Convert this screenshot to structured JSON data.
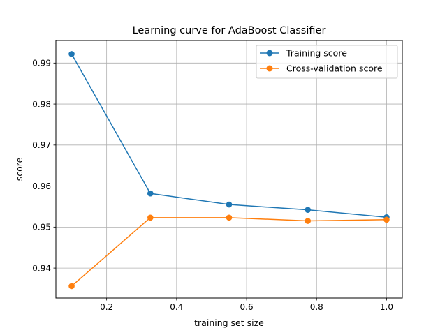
{
  "chart_data": {
    "type": "line",
    "title": "Learning curve for AdaBoost Classifier",
    "xlabel": "training set size",
    "ylabel": "score",
    "xlim": [
      0.055,
      1.045
    ],
    "ylim": [
      0.9327,
      0.9955
    ],
    "xticks": [
      0.2,
      0.4,
      0.6,
      0.8,
      1.0
    ],
    "xtick_labels": [
      "0.2",
      "0.4",
      "0.6",
      "0.8",
      "1.0"
    ],
    "yticks": [
      0.94,
      0.95,
      0.96,
      0.97,
      0.98,
      0.99
    ],
    "ytick_labels": [
      "0.94",
      "0.95",
      "0.96",
      "0.97",
      "0.98",
      "0.99"
    ],
    "grid": true,
    "legend_position": "top-right",
    "x": [
      0.1,
      0.325,
      0.55,
      0.775,
      1.0
    ],
    "series": [
      {
        "name": "Training score",
        "color": "#1f77b4",
        "values": [
          0.9922,
          0.9582,
          0.9555,
          0.9542,
          0.9524
        ]
      },
      {
        "name": "Cross-validation score",
        "color": "#ff7f0e",
        "values": [
          0.9356,
          0.9523,
          0.9523,
          0.9515,
          0.9518
        ]
      }
    ]
  }
}
